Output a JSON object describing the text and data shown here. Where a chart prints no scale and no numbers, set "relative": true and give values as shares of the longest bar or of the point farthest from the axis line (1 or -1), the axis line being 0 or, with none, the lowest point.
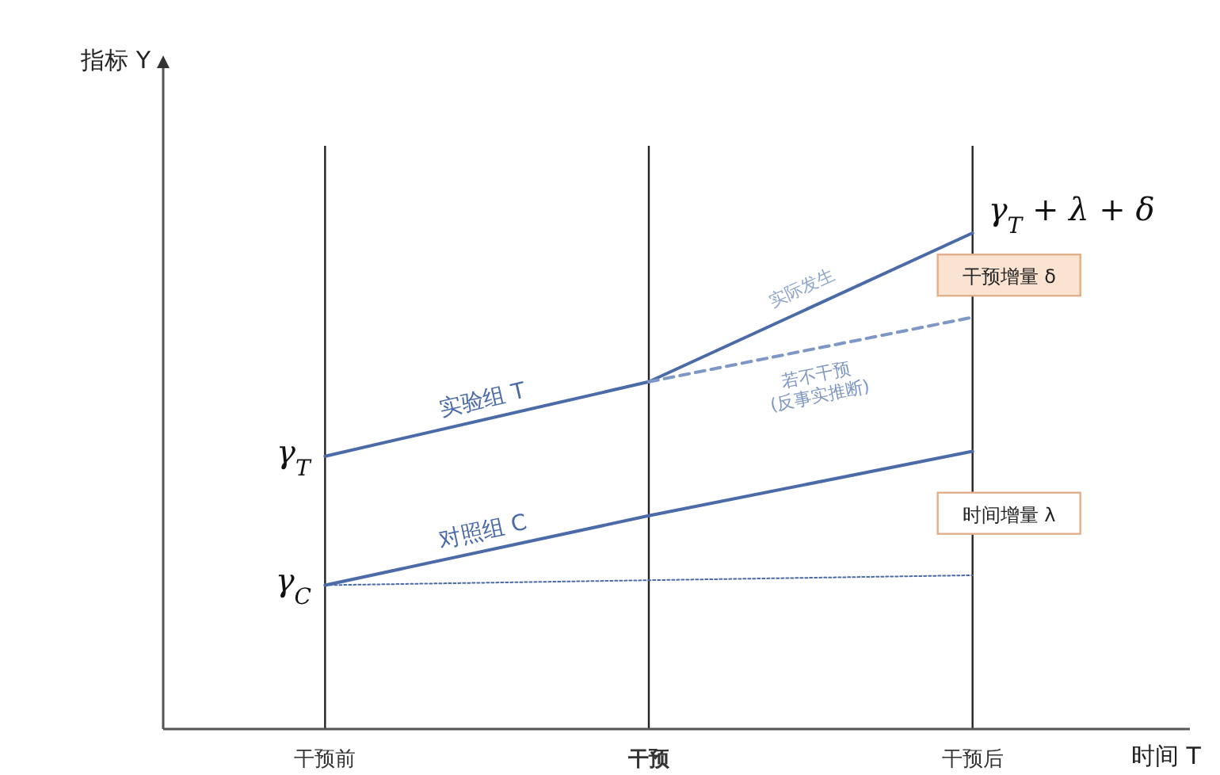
{
  "chart_data": {
    "type": "line",
    "relative": true,
    "xlabel": "时间 T",
    "categories": [
      "干预前",
      "干预",
      "干预后"
    ],
    "grid": "x",
    "legend": false,
    "marker": "none",
    "series": [
      {
        "name": "实验组 T",
        "color": "#4a6aa8",
        "line_style": "solid",
        "values": [
          0.55,
          0.7,
          1
        ]
      },
      {
        "name": "若不干预\n(反事实推断)",
        "color": "#7f97c4",
        "line_style": "dashed",
        "values": [
          null,
          0.7,
          0.83
        ]
      },
      {
        "name": "对照组 C",
        "color": "#4a6aa8",
        "line_style": "solid",
        "values": [
          0.29,
          0.43,
          0.56
        ]
      },
      {
        "color": "#4a6aa8",
        "line_style": "dotted",
        "values": [
          0.29,
          null,
          0.31
        ]
      }
    ],
    "annotations": [
      {
        "text": "γ$_{T}$",
        "x": "干预前",
        "y": 0.55
      },
      {
        "text": "γ$_{C}$",
        "x": "干预前",
        "y": 0.29
      },
      {
        "text": "γ$_{T}$ + λ + δ",
        "x": "干预后",
        "y": 1
      },
      "指标 Y",
      "实际发生",
      "干预增量 δ",
      "时间增量 λ"
    ]
  }
}
